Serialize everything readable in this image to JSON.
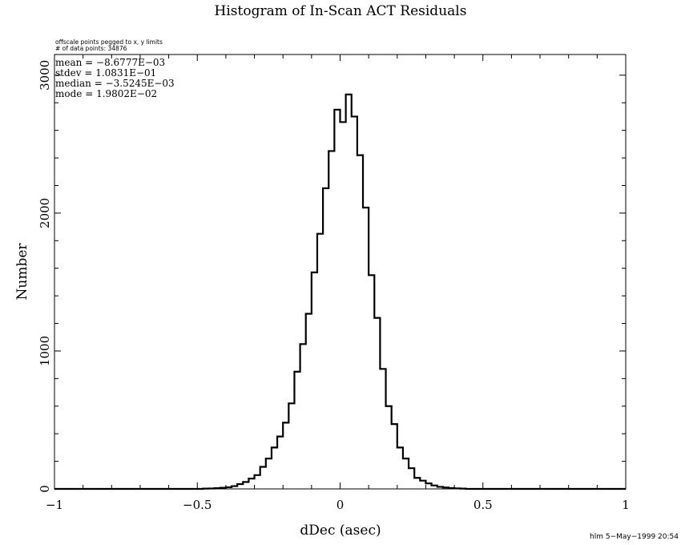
{
  "chart_data": {
    "type": "bar",
    "title": "Histogram of In-Scan ACT Residuals",
    "xlabel": "dDec (asec)",
    "ylabel": "Number",
    "xlim": [
      -1,
      1
    ],
    "ylim": [
      0,
      3150
    ],
    "x_major_ticks": [
      -1,
      -0.5,
      0,
      0.5,
      1
    ],
    "x_tick_labels": [
      "−1",
      "−0.5",
      "0",
      "0.5",
      "1"
    ],
    "y_major_ticks": [
      0,
      1000,
      2000,
      3000
    ],
    "y_tick_labels": [
      "0",
      "1000",
      "2000",
      "3000"
    ],
    "bin_width": 0.02,
    "bin_start": -0.48,
    "values": [
      2,
      3,
      5,
      8,
      12,
      20,
      35,
      50,
      75,
      100,
      160,
      220,
      300,
      380,
      480,
      620,
      850,
      1050,
      1270,
      1570,
      1850,
      2180,
      2450,
      2750,
      2660,
      2860,
      2700,
      2420,
      2040,
      1550,
      1240,
      870,
      600,
      470,
      300,
      220,
      150,
      80,
      60,
      40,
      25,
      15,
      10,
      6,
      4,
      2
    ],
    "grid": false,
    "legend": "none"
  },
  "notes": {
    "line1": "offscale points pegged to x, y limits",
    "line2": "# of data points: 34876"
  },
  "stats": {
    "mean": "mean = −8.6777E−03",
    "stdev": "stdev =  1.0831E−01",
    "median": "median = −3.5245E−03",
    "mode": "mode =  1.9802E−02"
  },
  "footer": {
    "credit": "hlm  5−May−1999 20:54"
  }
}
